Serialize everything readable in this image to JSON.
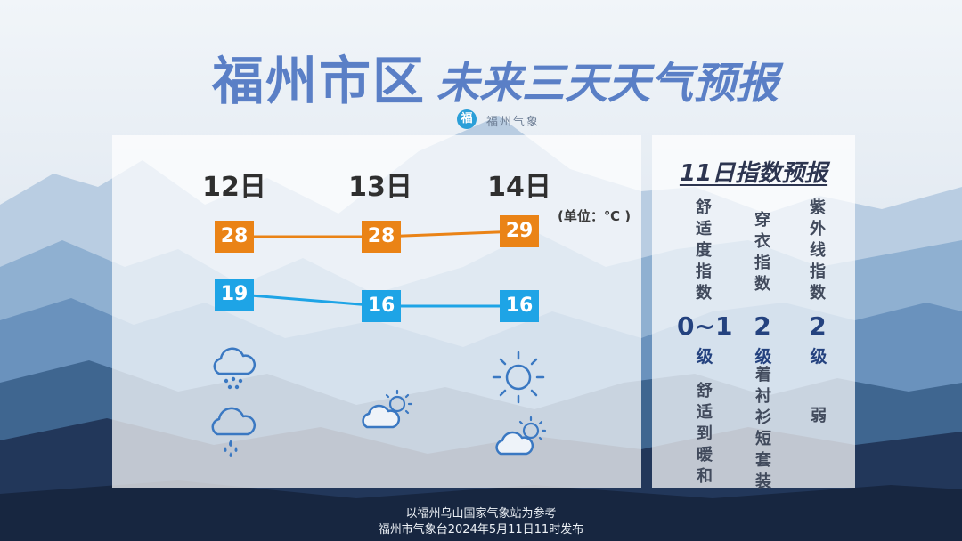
{
  "header": {
    "title_main": "福州市区",
    "title_sub": "未来三天天气预报",
    "logo_glyph": "福",
    "logo_text": "福州气象"
  },
  "forecast": {
    "unit": "(单位：℃ )",
    "days": [
      {
        "label": "12日",
        "high": 28,
        "low": 19,
        "icons": [
          "light-rain-icon",
          "rain-icon"
        ]
      },
      {
        "label": "13日",
        "high": 28,
        "low": 16,
        "icons": [
          "partly-cloudy-icon"
        ]
      },
      {
        "label": "14日",
        "high": 29,
        "low": 16,
        "icons": [
          "sunny-icon",
          "partly-cloudy-icon"
        ]
      }
    ],
    "colors": {
      "high": "#ea8316",
      "low": "#1ea4e6"
    }
  },
  "index": {
    "title": "11日指数预报",
    "items": [
      {
        "name": "舒适度指数",
        "level": "0~1",
        "unit": "级",
        "desc": "舒适到暖和"
      },
      {
        "name": "穿衣指数",
        "level": "2",
        "unit": "级",
        "desc": "着衬衫短套装"
      },
      {
        "name": "紫外线指数",
        "level": "2",
        "unit": "级",
        "desc": "弱"
      }
    ]
  },
  "footer": {
    "line1": "以福州乌山国家气象站为参考",
    "line2": "福州市气象台2024年5月11日11时发布"
  }
}
